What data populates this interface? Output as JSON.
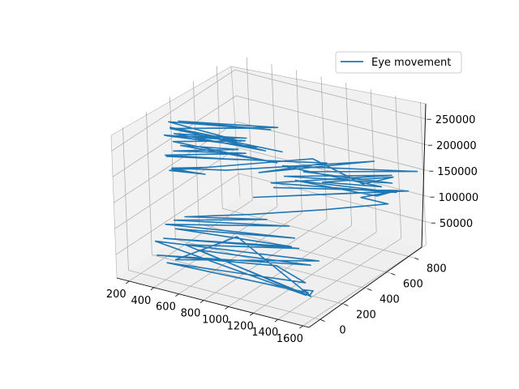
{
  "chart_data": {
    "type": "line",
    "projection": "3d",
    "title": "",
    "xlabel": "",
    "ylabel": "",
    "zlabel": "",
    "xlim": [
      100,
      1650
    ],
    "ylim": [
      -100,
      950
    ],
    "zlim": [
      5000,
      280000
    ],
    "x_ticks": [
      200,
      400,
      600,
      800,
      1000,
      1200,
      1400,
      1600
    ],
    "y_ticks": [
      0,
      200,
      400,
      600,
      800
    ],
    "z_ticks": [
      50000,
      100000,
      150000,
      200000,
      250000
    ],
    "grid": true,
    "legend_position": "top-right",
    "color": "#1f77b4",
    "series": [
      {
        "name": "Eye movement",
        "points": [
          [
            1450,
            120,
            22000
          ],
          [
            1450,
            150,
            26000
          ],
          [
            1400,
            110,
            31000
          ],
          [
            1430,
            130,
            24000
          ],
          [
            300,
            120,
            14000
          ],
          [
            1400,
            140,
            40000
          ],
          [
            1100,
            210,
            44000
          ],
          [
            250,
            90,
            30000
          ],
          [
            1350,
            240,
            56000
          ],
          [
            500,
            180,
            42000
          ],
          [
            1400,
            140,
            16000
          ],
          [
            220,
            110,
            52000
          ],
          [
            1380,
            280,
            60000
          ],
          [
            350,
            140,
            20000
          ],
          [
            700,
            300,
            62000
          ],
          [
            1420,
            160,
            12000
          ],
          [
            450,
            120,
            58000
          ],
          [
            1200,
            300,
            70000
          ],
          [
            300,
            100,
            64000
          ],
          [
            1150,
            290,
            72000
          ],
          [
            350,
            150,
            78000
          ],
          [
            1150,
            320,
            84000
          ],
          [
            300,
            120,
            88000
          ],
          [
            1050,
            380,
            92000
          ],
          [
            350,
            140,
            96000
          ],
          [
            900,
            350,
            100000
          ],
          [
            420,
            160,
            104000
          ],
          [
            800,
            320,
            108000
          ],
          [
            1200,
            520,
            112000
          ],
          [
            1550,
            700,
            118000
          ],
          [
            1350,
            680,
            121000
          ],
          [
            1500,
            800,
            124000
          ],
          [
            750,
            400,
            126000
          ],
          [
            1600,
            820,
            128000
          ],
          [
            800,
            520,
            130000
          ],
          [
            1550,
            780,
            132000
          ],
          [
            1500,
            660,
            136000
          ],
          [
            900,
            600,
            138000
          ],
          [
            1600,
            720,
            140000
          ],
          [
            800,
            500,
            142000
          ],
          [
            1450,
            840,
            146000
          ],
          [
            850,
            560,
            149000
          ],
          [
            1550,
            740,
            152000
          ],
          [
            950,
            620,
            155000
          ],
          [
            1620,
            880,
            158000
          ],
          [
            800,
            600,
            160000
          ],
          [
            1500,
            700,
            148000
          ],
          [
            1100,
            620,
            144000
          ],
          [
            1550,
            750,
            162000
          ],
          [
            1450,
            600,
            165000
          ],
          [
            950,
            700,
            168000
          ],
          [
            250,
            220,
            174000
          ],
          [
            500,
            260,
            176000
          ],
          [
            280,
            210,
            180000
          ],
          [
            480,
            300,
            182000
          ],
          [
            300,
            190,
            186000
          ],
          [
            650,
            280,
            190000
          ],
          [
            1450,
            700,
            194000
          ],
          [
            900,
            300,
            198000
          ],
          [
            1200,
            560,
            196000
          ],
          [
            250,
            200,
            204000
          ],
          [
            700,
            330,
            206000
          ],
          [
            260,
            180,
            210000
          ],
          [
            720,
            380,
            212000
          ],
          [
            300,
            210,
            216000
          ],
          [
            680,
            360,
            220000
          ],
          [
            330,
            240,
            224000
          ],
          [
            1050,
            300,
            226000
          ],
          [
            280,
            230,
            230000
          ],
          [
            700,
            400,
            232000
          ],
          [
            200,
            240,
            236000
          ],
          [
            860,
            330,
            240000
          ],
          [
            240,
            210,
            242000
          ],
          [
            750,
            360,
            246000
          ],
          [
            300,
            220,
            248000
          ],
          [
            1000,
            260,
            252000
          ],
          [
            250,
            240,
            254000
          ],
          [
            800,
            260,
            258000
          ],
          [
            230,
            250,
            262000
          ],
          [
            900,
            410,
            264000
          ],
          [
            300,
            260,
            266000
          ],
          [
            950,
            420,
            270000
          ],
          [
            280,
            210,
            258000
          ],
          [
            1100,
            300,
            250000
          ]
        ]
      }
    ]
  }
}
